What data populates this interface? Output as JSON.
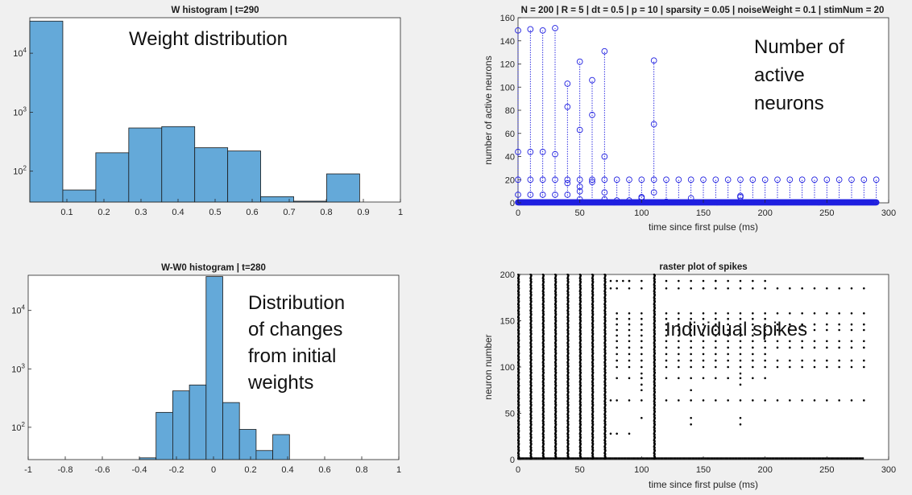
{
  "chart_data": [
    {
      "id": "w_hist",
      "type": "bar",
      "title": "W histogram | t=290",
      "xlabel": "",
      "ylabel": "",
      "yscale": "log",
      "xlim": [
        0,
        1
      ],
      "ylim": [
        30,
        40000
      ],
      "xticks": [
        0.1,
        0.2,
        0.3,
        0.4,
        0.5,
        0.6,
        0.7,
        0.8,
        0.9,
        1
      ],
      "xtick_labels": [
        "0.1",
        "0.2",
        "0.3",
        "0.4",
        "0.5",
        "0.6",
        "0.7",
        "0.8",
        "0.9",
        "1"
      ],
      "yticks": [
        100,
        1000,
        10000
      ],
      "ytick_labels": [
        "10^2",
        "10^3",
        "10^4"
      ],
      "bin_edges": [
        0,
        0.089,
        0.178,
        0.267,
        0.356,
        0.445,
        0.534,
        0.623,
        0.712,
        0.801,
        0.89
      ],
      "values": [
        35000,
        48,
        205,
        540,
        570,
        250,
        220,
        37,
        31,
        90
      ],
      "bar_color": "#64a9d9",
      "annotation": "Weight distribution"
    },
    {
      "id": "active_neurons",
      "type": "stem",
      "title": "N = 200 | R = 5 | dt = 0.5 | p = 10 | sparsity = 0.05 | noiseWeight = 0.1 | stimNum = 20",
      "xlabel": "time since first pulse (ms)",
      "ylabel": "number of active neurons",
      "xlim": [
        0,
        300
      ],
      "ylim": [
        0,
        160
      ],
      "xticks": [
        0,
        50,
        100,
        150,
        200,
        250,
        300
      ],
      "yticks": [
        0,
        20,
        40,
        60,
        80,
        100,
        120,
        140,
        160
      ],
      "marker_color": "#1f1fe0",
      "pulse_period": 10,
      "pulse_peak": 20,
      "pulse_end": 290,
      "bursts": [
        {
          "x": 0,
          "points": [
            7,
            20,
            44,
            149
          ]
        },
        {
          "x": 10,
          "points": [
            7,
            20,
            44,
            150
          ]
        },
        {
          "x": 20,
          "points": [
            7,
            20,
            44,
            149
          ]
        },
        {
          "x": 30,
          "points": [
            7,
            20,
            42,
            151
          ]
        },
        {
          "x": 40,
          "points": [
            7,
            17,
            20,
            83,
            103
          ]
        },
        {
          "x": 50,
          "points": [
            3,
            10,
            14,
            20,
            63,
            122
          ]
        },
        {
          "x": 60,
          "points": [
            18,
            20,
            76,
            106
          ]
        },
        {
          "x": 70,
          "points": [
            3,
            9,
            20,
            40,
            131
          ]
        },
        {
          "x": 110,
          "points": [
            9,
            20,
            68,
            123
          ]
        }
      ],
      "annotation": "Number of active neurons"
    },
    {
      "id": "dw_hist",
      "type": "bar",
      "title": "W-W0 histogram | t=280",
      "xlabel": "",
      "ylabel": "",
      "yscale": "log",
      "xlim": [
        -1,
        1
      ],
      "ylim": [
        28,
        40000
      ],
      "xticks": [
        -1,
        -0.8,
        -0.6,
        -0.4,
        -0.2,
        0,
        0.2,
        0.4,
        0.6,
        0.8,
        1
      ],
      "xtick_labels": [
        "-1",
        "-0.8",
        "-0.6",
        "-0.4",
        "-0.2",
        "0",
        "0.2",
        "0.4",
        "0.6",
        "0.8",
        "1"
      ],
      "yticks": [
        100,
        1000,
        10000
      ],
      "ytick_labels": [
        "10^2",
        "10^3",
        "10^4"
      ],
      "bin_edges": [
        -0.4,
        -0.31,
        -0.22,
        -0.13,
        -0.04,
        0.05,
        0.14,
        0.23,
        0.32,
        0.41
      ],
      "values": [
        30,
        180,
        420,
        530,
        38000,
        265,
        92,
        40,
        75
      ],
      "bar_color": "#64a9d9",
      "annotation": "Distribution of changes from initial weights"
    },
    {
      "id": "raster",
      "type": "scatter",
      "title": "raster plot of spikes",
      "xlabel": "time since first pulse (ms)",
      "ylabel": "neuron number",
      "xlim": [
        0,
        300
      ],
      "ylim": [
        0,
        200
      ],
      "xticks": [
        0,
        50,
        100,
        150,
        200,
        250,
        300
      ],
      "yticks": [
        0,
        50,
        100,
        150,
        200
      ],
      "marker_color": "#000000",
      "full_columns": [
        0,
        10,
        20,
        30,
        40,
        50,
        60,
        70,
        110
      ],
      "pulse_period": 10,
      "pulse_start": 80,
      "pulse_end": 280,
      "active_neurons": [
        64,
        88,
        100,
        107,
        114,
        121,
        128,
        134,
        140,
        146,
        152,
        158,
        185,
        193
      ],
      "annotation": "Individual spikes"
    }
  ]
}
